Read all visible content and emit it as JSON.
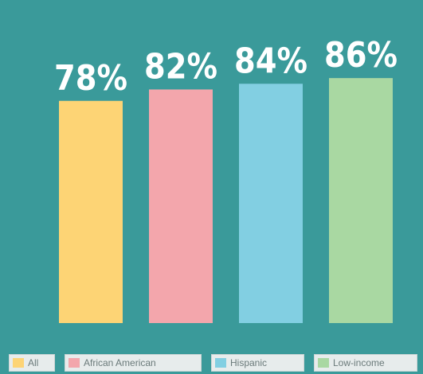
{
  "chart_data": {
    "type": "bar",
    "categories": [
      "All",
      "African American",
      "Hispanic",
      "Low-income"
    ],
    "values": [
      78,
      82,
      84,
      86
    ],
    "value_labels": [
      "78%",
      "82%",
      "84%",
      "86%"
    ],
    "colors": [
      "#fdd475",
      "#f3a6ac",
      "#82cfe2",
      "#a9d8a2"
    ],
    "ylim": [
      0,
      100
    ],
    "grid": false,
    "legend_position": "bottom"
  }
}
